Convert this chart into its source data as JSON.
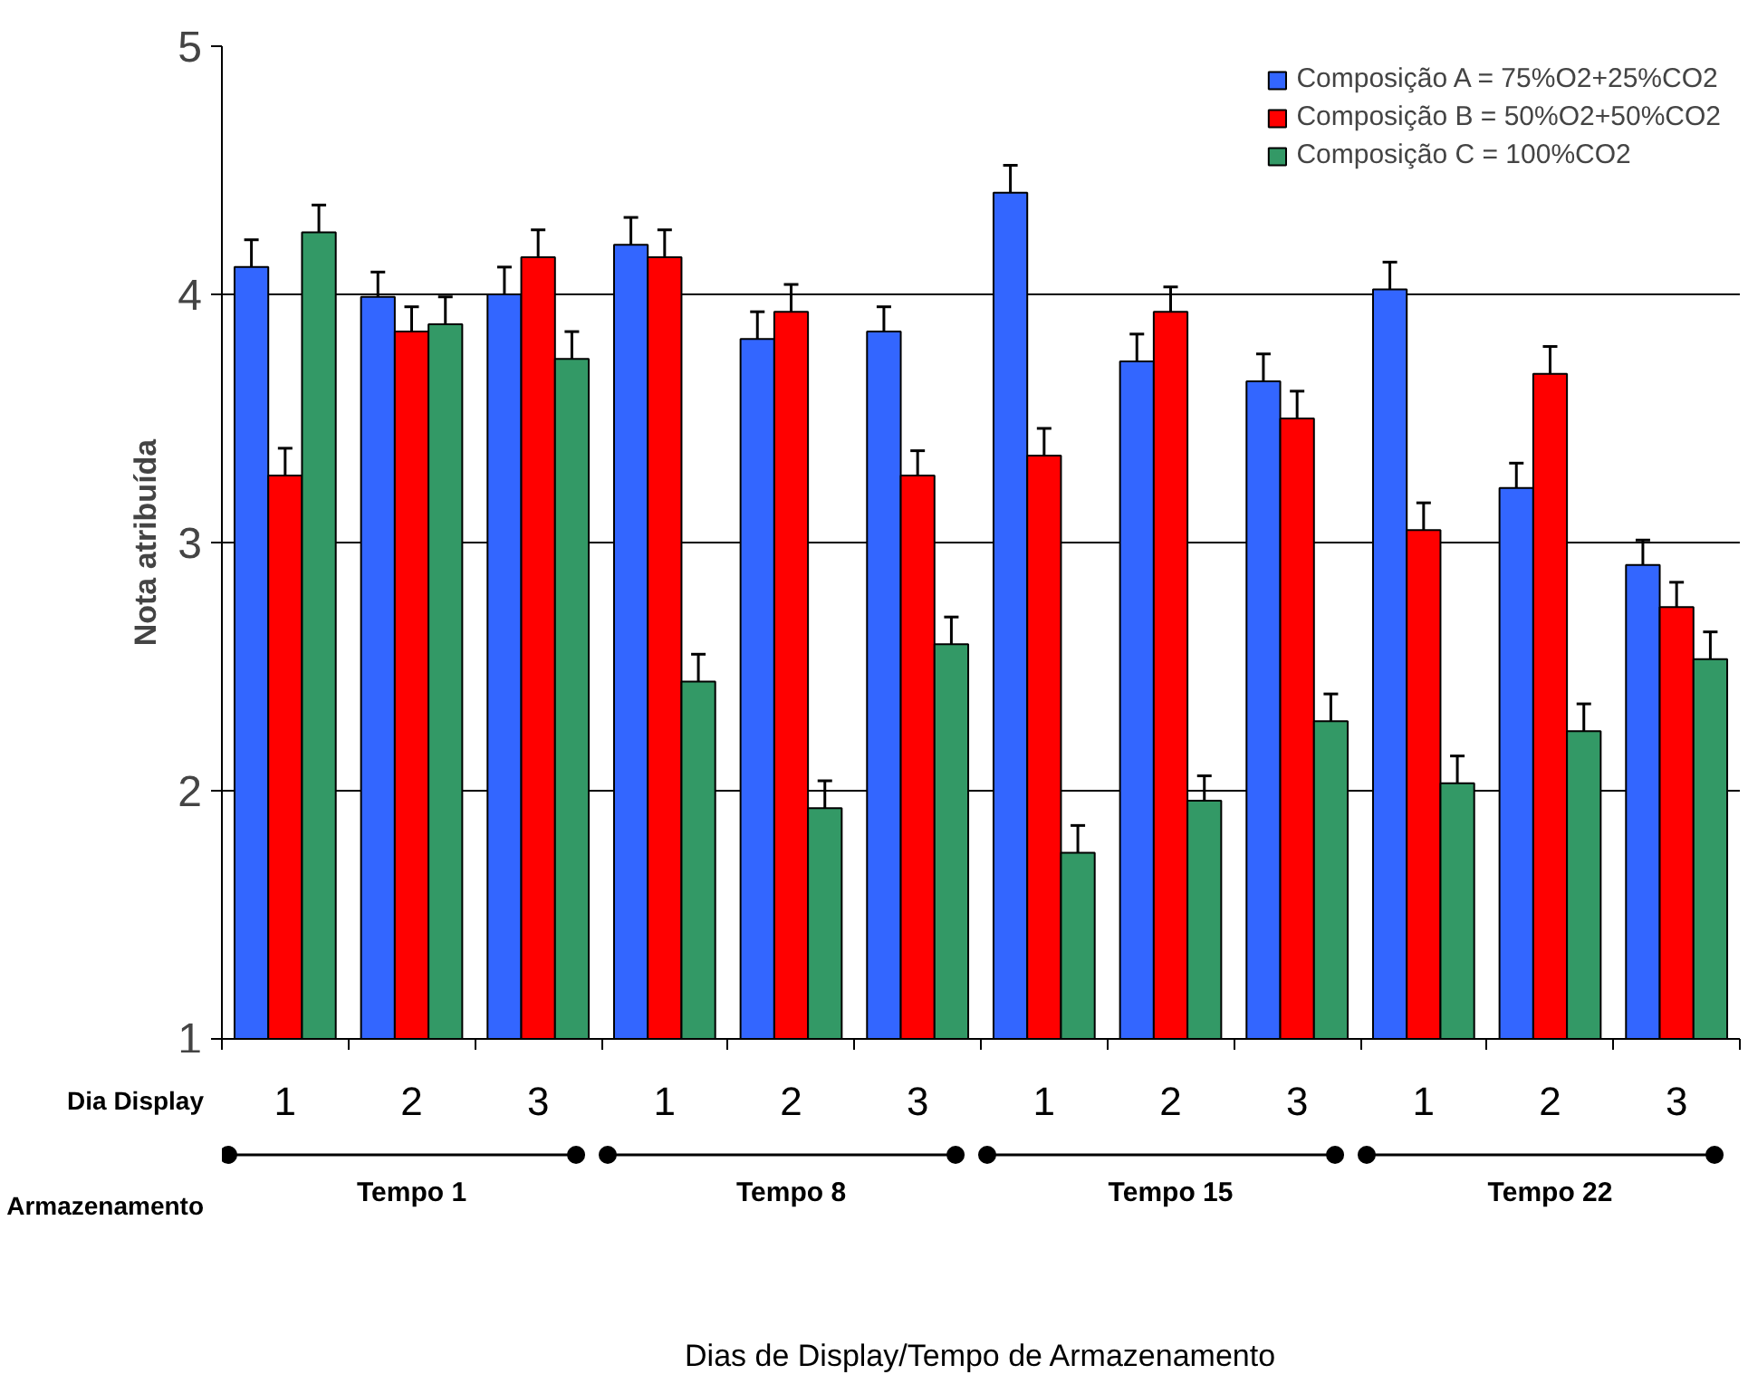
{
  "chart_data": {
    "type": "bar",
    "ylabel": "Nota atribuída",
    "categories": [
      "1",
      "2",
      "3",
      "1",
      "2",
      "3",
      "1",
      "2",
      "3",
      "1",
      "2",
      "3"
    ],
    "series": [
      {
        "name": "Composição A = 75%O2+25%CO2",
        "color": "#3366ff",
        "values": [
          4.11,
          3.99,
          4.0,
          4.2,
          3.82,
          3.85,
          4.41,
          3.73,
          3.65,
          4.02,
          3.22,
          2.91
        ],
        "errors": [
          0.11,
          0.1,
          0.11,
          0.11,
          0.11,
          0.1,
          0.11,
          0.11,
          0.11,
          0.11,
          0.1,
          0.1
        ]
      },
      {
        "name": "Composição B = 50%O2+50%CO2",
        "color": "#ff0000",
        "values": [
          3.27,
          3.85,
          4.15,
          4.15,
          3.93,
          3.27,
          3.35,
          3.93,
          3.5,
          3.05,
          3.68,
          2.74
        ],
        "errors": [
          0.11,
          0.1,
          0.11,
          0.11,
          0.11,
          0.1,
          0.11,
          0.1,
          0.11,
          0.11,
          0.11,
          0.1
        ]
      },
      {
        "name": "Composição C = 100%CO2",
        "color": "#339966",
        "values": [
          4.25,
          3.88,
          3.74,
          2.44,
          1.93,
          2.59,
          1.75,
          1.96,
          2.28,
          2.03,
          2.24,
          2.53
        ],
        "errors": [
          0.11,
          0.11,
          0.11,
          0.11,
          0.11,
          0.11,
          0.11,
          0.1,
          0.11,
          0.11,
          0.11,
          0.11
        ]
      }
    ],
    "ylim": [
      1,
      5
    ],
    "yticks": [
      1,
      2,
      3,
      4,
      5
    ],
    "grid": "y",
    "legend": "top right",
    "annotations": [
      "Dia Display",
      "Armazenamento",
      "Tempo 1",
      "Tempo 8",
      "Tempo 15",
      "Tempo 22",
      "Dias de Display/Tempo de Armazenamento"
    ]
  }
}
